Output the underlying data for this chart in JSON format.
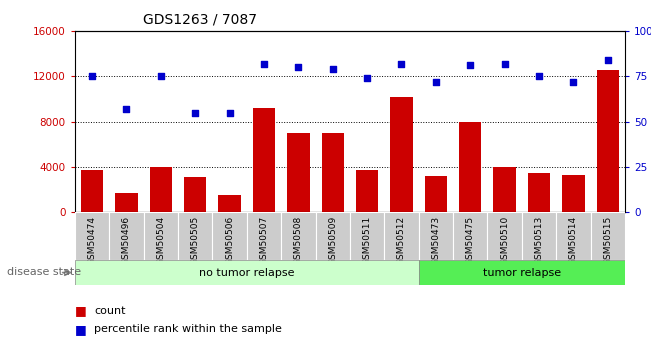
{
  "title": "GDS1263 / 7087",
  "samples": [
    "GSM50474",
    "GSM50496",
    "GSM50504",
    "GSM50505",
    "GSM50506",
    "GSM50507",
    "GSM50508",
    "GSM50509",
    "GSM50511",
    "GSM50512",
    "GSM50473",
    "GSM50475",
    "GSM50510",
    "GSM50513",
    "GSM50514",
    "GSM50515"
  ],
  "counts": [
    3700,
    1700,
    4000,
    3100,
    1500,
    9200,
    7000,
    7000,
    3700,
    10200,
    3200,
    8000,
    4000,
    3500,
    3300,
    12600
  ],
  "percentiles": [
    75,
    57,
    75,
    55,
    55,
    82,
    80,
    79,
    74,
    82,
    72,
    81,
    82,
    75,
    72,
    84
  ],
  "no_tumor_count": 10,
  "tumor_count": 6,
  "ylim_left": [
    0,
    16000
  ],
  "ylim_right": [
    0,
    100
  ],
  "yticks_left": [
    0,
    4000,
    8000,
    12000,
    16000
  ],
  "yticks_right": [
    0,
    25,
    50,
    75,
    100
  ],
  "bar_color": "#cc0000",
  "dot_color": "#0000cc",
  "no_tumor_color": "#ccffcc",
  "tumor_color": "#55ee55",
  "label_bg_color": "#cccccc",
  "grid_color": "#000000",
  "xlabel_no_tumor": "no tumor relapse",
  "xlabel_tumor": "tumor relapse",
  "disease_label": "disease state",
  "legend_count": "count",
  "legend_pct": "percentile rank within the sample",
  "legend_count_color": "#cc0000",
  "legend_pct_color": "#0000cc"
}
